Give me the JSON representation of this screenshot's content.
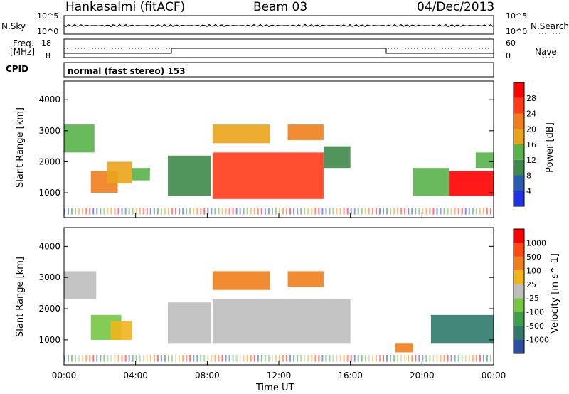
{
  "header": {
    "radar": "Hankasalmi (fitACF)",
    "beam": "Beam 03",
    "date": "04/Dec/2013"
  },
  "panels": {
    "nsky": {
      "label": "N.Sky",
      "left_ticks": [
        "10^5",
        "10^0"
      ],
      "right_label": "N.Search",
      "right_ticks": [
        "10^5",
        "10^0"
      ]
    },
    "freq": {
      "label_line1": "Freq.",
      "label_line2": "[MHz]",
      "left_ticks": [
        "18",
        "8"
      ],
      "right_label": "Nave",
      "right_ticks": [
        "60",
        "0"
      ]
    },
    "cpid": {
      "label": "CPID",
      "text": "normal (fast stereo) 153"
    }
  },
  "chart_data": [
    {
      "type": "heatmap",
      "title": "",
      "xlabel": "",
      "ylabel": "Slant Range [km]",
      "xlim": [
        0,
        24
      ],
      "ylim": [
        200,
        4600
      ],
      "yticks": [
        "1000",
        "2000",
        "3000",
        "4000"
      ],
      "colorbar": {
        "label": "Power [dB]",
        "ticks": [
          "4",
          "8",
          "12",
          "16",
          "20",
          "24",
          "28"
        ],
        "colors": [
          "#1f33e6",
          "#2a5cae",
          "#3f8a4a",
          "#58b34a",
          "#e9a31a",
          "#f07e1c",
          "#ff3b1a",
          "#ff0000"
        ]
      },
      "regions": [
        {
          "t0": 0.0,
          "t1": 1.7,
          "r0": 2300,
          "r1": 3200,
          "level": 3
        },
        {
          "t0": 1.5,
          "t1": 3.0,
          "r0": 1000,
          "r1": 1700,
          "level": 5
        },
        {
          "t0": 2.4,
          "t1": 3.8,
          "r0": 1300,
          "r1": 2000,
          "level": 4
        },
        {
          "t0": 3.8,
          "t1": 4.8,
          "r0": 1400,
          "r1": 1800,
          "level": 3
        },
        {
          "t0": 5.8,
          "t1": 8.2,
          "r0": 900,
          "r1": 2200,
          "level": 2
        },
        {
          "t0": 8.3,
          "t1": 14.5,
          "r0": 800,
          "r1": 2300,
          "level": 6
        },
        {
          "t0": 8.3,
          "t1": 11.5,
          "r0": 2600,
          "r1": 3200,
          "level": 4
        },
        {
          "t0": 12.5,
          "t1": 14.5,
          "r0": 2700,
          "r1": 3200,
          "level": 5
        },
        {
          "t0": 14.5,
          "t1": 16.0,
          "r0": 1800,
          "r1": 2500,
          "level": 2
        },
        {
          "t0": 19.5,
          "t1": 21.5,
          "r0": 900,
          "r1": 1800,
          "level": 3
        },
        {
          "t0": 21.5,
          "t1": 24.0,
          "r0": 900,
          "r1": 1700,
          "level": 7
        },
        {
          "t0": 23.0,
          "t1": 24.0,
          "r0": 1800,
          "r1": 2300,
          "level": 3
        }
      ]
    },
    {
      "type": "heatmap",
      "title": "",
      "xlabel": "Time UT",
      "ylabel": "Slant Range [km]",
      "xlim": [
        0,
        24
      ],
      "ylim": [
        200,
        4600
      ],
      "xticks": [
        "00:00",
        "04:00",
        "08:00",
        "12:00",
        "16:00",
        "20:00",
        "00:00"
      ],
      "yticks": [
        "1000",
        "2000",
        "3000",
        "4000"
      ],
      "colorbar": {
        "label": "Velocity [m s^-1]",
        "ticks": [
          "1000",
          "500",
          "100",
          "25",
          "-25",
          "-100",
          "-500",
          "-1000"
        ],
        "colors": [
          "#2b4ea3",
          "#2f7a6a",
          "#3e9e4a",
          "#76c844",
          "#bebebe",
          "#f0b51b",
          "#f07e1c",
          "#ff4a14",
          "#ff0000"
        ]
      },
      "regions": [
        {
          "t0": 0.0,
          "t1": 1.8,
          "r0": 2300,
          "r1": 3200,
          "level": 4
        },
        {
          "t0": 1.5,
          "t1": 3.2,
          "r0": 1000,
          "r1": 1800,
          "level": 3
        },
        {
          "t0": 2.6,
          "t1": 3.8,
          "r0": 1000,
          "r1": 1600,
          "level": 5
        },
        {
          "t0": 5.8,
          "t1": 8.2,
          "r0": 900,
          "r1": 2200,
          "level": 4
        },
        {
          "t0": 8.3,
          "t1": 16.0,
          "r0": 900,
          "r1": 2300,
          "level": 4
        },
        {
          "t0": 8.3,
          "t1": 11.5,
          "r0": 2600,
          "r1": 3200,
          "level": 6
        },
        {
          "t0": 12.5,
          "t1": 14.5,
          "r0": 2700,
          "r1": 3200,
          "level": 6
        },
        {
          "t0": 18.5,
          "t1": 19.5,
          "r0": 600,
          "r1": 900,
          "level": 6
        },
        {
          "t0": 20.5,
          "t1": 24.0,
          "r0": 900,
          "r1": 1800,
          "level": 1
        }
      ]
    }
  ]
}
